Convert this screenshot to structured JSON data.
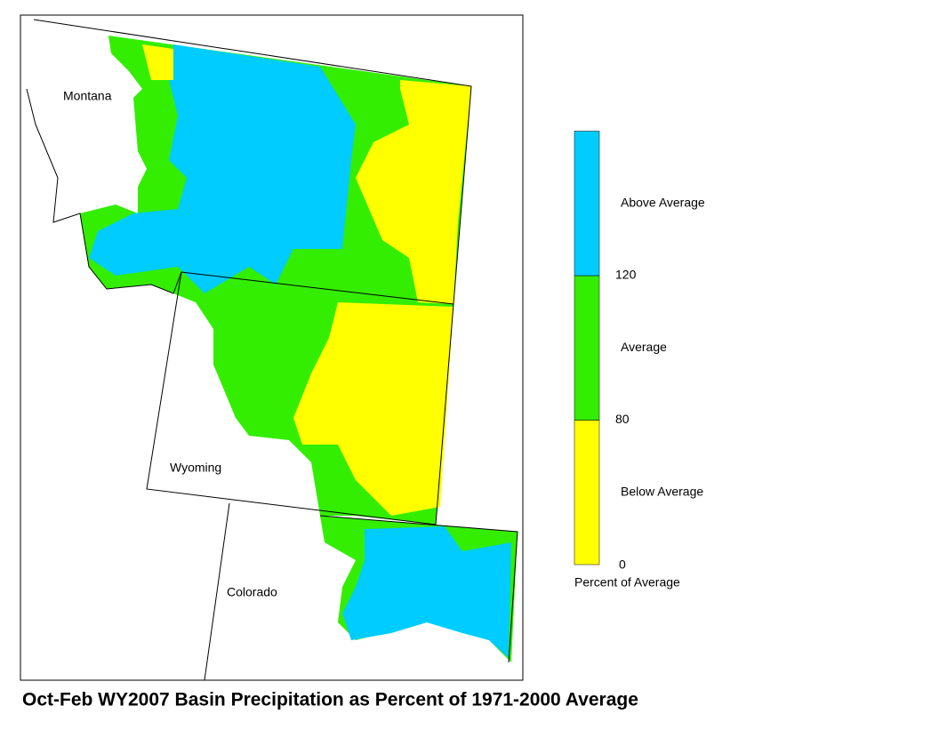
{
  "title": "Oct-Feb WY2007 Basin Precipitation as Percent of 1971-2000 Average",
  "states": [
    "Montana",
    "Wyoming",
    "Colorado"
  ],
  "legend": {
    "title": "Percent of Average",
    "ticks": [
      0,
      80,
      120
    ],
    "bands": [
      {
        "label": "Below Average",
        "color": "#ffff00"
      },
      {
        "label": "Average",
        "color": "#33ee00"
      },
      {
        "label": "Above Average",
        "color": "#00ccff"
      }
    ]
  }
}
